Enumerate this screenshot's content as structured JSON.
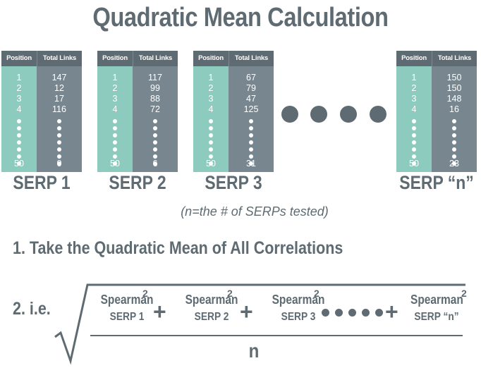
{
  "title": "Quadratic Mean Calculation",
  "table_headers": {
    "position": "Position",
    "total_links": "Total Links"
  },
  "serps": [
    {
      "label": "SERP 1",
      "positions": [
        "1",
        "2",
        "3",
        "4"
      ],
      "links": [
        "147",
        "12",
        "17",
        "116"
      ],
      "last_position": "50",
      "last_links": "0"
    },
    {
      "label": "SERP 2",
      "positions": [
        "1",
        "2",
        "3",
        "4"
      ],
      "links": [
        "117",
        "99",
        "88",
        "72"
      ],
      "last_position": "50",
      "last_links": "6"
    },
    {
      "label": "SERP 3",
      "positions": [
        "1",
        "2",
        "3",
        "4"
      ],
      "links": [
        "67",
        "79",
        "47",
        "125"
      ],
      "last_position": "50",
      "last_links": "31"
    },
    {
      "label": "SERP “n”",
      "positions": [
        "1",
        "2",
        "3",
        "4"
      ],
      "links": [
        "150",
        "150",
        "148",
        "16"
      ],
      "last_position": "50",
      "last_links": "23"
    }
  ],
  "note": "(n=the # of SERPs tested)",
  "step1": "1. Take the Quadratic Mean of All Correlations",
  "step2": "2. i.e.",
  "formula": {
    "term_name": "Spearman",
    "exponent": "2",
    "operator": "+",
    "terms": [
      "SERP 1",
      "SERP 2",
      "SERP 3",
      "SERP “n”"
    ],
    "denominator": "n"
  },
  "colors": {
    "dark": "#5e6b72",
    "teal": "#8ccbbe",
    "slate": "#78878f"
  }
}
